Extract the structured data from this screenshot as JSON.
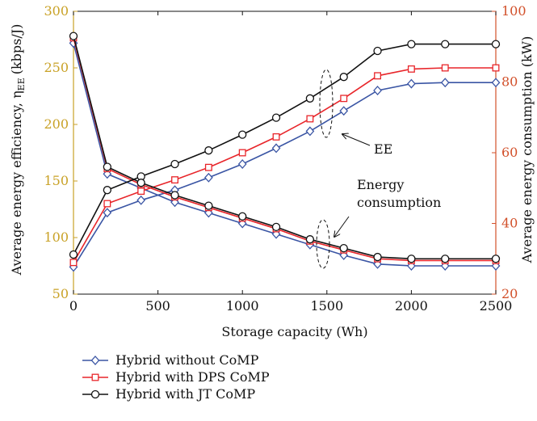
{
  "chart_data": {
    "type": "line",
    "xlabel": "Storage capacity (Wh)",
    "ylabel_left": "Average energy efficiency, η",
    "ylabel_left_sub": "EE",
    "ylabel_left_unit": "(kbps/J)",
    "ylabel_right": "Average energy consumption (kW)",
    "xlim": [
      0,
      2500
    ],
    "ylim_left": [
      50,
      300
    ],
    "ylim_right": [
      20,
      100
    ],
    "x_ticks": [
      0,
      500,
      1000,
      1500,
      2000,
      2500
    ],
    "y_left_ticks": [
      50,
      100,
      150,
      200,
      250,
      300
    ],
    "y_right_ticks": [
      20,
      40,
      60,
      80,
      100
    ],
    "x": [
      0,
      200,
      400,
      600,
      800,
      1000,
      1200,
      1400,
      1600,
      1800,
      2000,
      2200,
      2500
    ],
    "left_axis_color": "#c9a227",
    "right_axis_color": "#d2502a",
    "annotations": {
      "ee": "EE",
      "energy_line1": "Energy",
      "energy_line2": "consumption"
    },
    "series": [
      {
        "name": "Hybrid without CoMP",
        "color": "#3a55a4",
        "marker": "diamond",
        "ee": [
          74,
          122,
          133,
          142,
          153,
          165,
          179,
          194,
          212,
          230,
          236,
          237,
          237
        ],
        "consumption": [
          91.0,
          54.0,
          50.0,
          46.0,
          43.0,
          40.0,
          37.0,
          34.0,
          31.0,
          28.5,
          28.0,
          28.0,
          28.0
        ]
      },
      {
        "name": "Hybrid with DPS CoMP",
        "color": "#e8252a",
        "marker": "square",
        "ee": [
          78,
          130,
          141,
          151,
          162,
          175,
          189,
          205,
          223,
          243,
          249,
          250,
          250
        ],
        "consumption": [
          92.5,
          55.5,
          51.0,
          47.5,
          44.5,
          41.5,
          38.5,
          35.0,
          32.5,
          30.0,
          29.5,
          29.5,
          29.5
        ]
      },
      {
        "name": "Hybrid with JT CoMP",
        "color": "#111111",
        "marker": "circle",
        "ee": [
          85,
          142,
          154,
          165,
          177,
          191,
          206,
          223,
          242,
          265,
          271,
          271,
          271
        ],
        "consumption": [
          93.0,
          56.0,
          51.5,
          48.0,
          45.0,
          42.0,
          39.0,
          35.5,
          33.0,
          30.5,
          30.0,
          30.0,
          30.0
        ]
      }
    ]
  }
}
